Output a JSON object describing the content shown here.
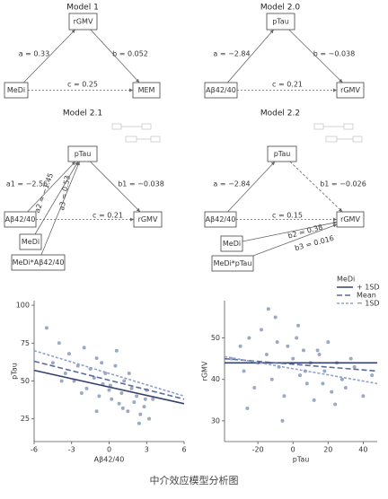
{
  "diagrams": [
    {
      "title": "Model 1",
      "nodes": [
        "rGMV",
        "MeDi",
        "MEM"
      ],
      "paths": [
        "a = 0.33",
        "b = 0.052",
        "c = 0.25"
      ]
    },
    {
      "title": "Model 2.0",
      "nodes": [
        "pTau",
        "Aβ42/40",
        "rGMV"
      ],
      "paths": [
        "a = −2.84",
        "b = −0.038",
        "c = 0.21"
      ]
    },
    {
      "title": "Model 2.1",
      "nodes": [
        "pTau",
        "Aβ42/40",
        "rGMV",
        "MeDi",
        "MeDi*Aβ42/40"
      ],
      "paths": [
        "a1 = −2.56",
        "a2 = −1.45",
        "a3 = 0.53",
        "b1 = −0.038",
        "c = 0.21"
      ]
    },
    {
      "title": "Model 2.2",
      "nodes": [
        "pTau",
        "Aβ42/40",
        "rGMV",
        "MeDi",
        "MeDi*pTau"
      ],
      "paths": [
        "a = −2.84",
        "b1 = −0.026",
        "c = 0.15",
        "b2 = 0.38",
        "b3 = 0.016"
      ]
    }
  ],
  "legend": {
    "title": "MeDi",
    "entries": [
      "+ 1SD",
      "Mean",
      "− 1SD"
    ]
  },
  "chart_data": [
    {
      "type": "scatter",
      "x_label": "Aβ42/40",
      "y_label": "pTau",
      "xlim": [
        -6,
        6
      ],
      "ylim": [
        10,
        103
      ],
      "xticks": [
        -6,
        -3,
        0,
        3,
        6
      ],
      "yticks": [
        25,
        50,
        75,
        100
      ],
      "points": {
        "color": "#5a6f9e",
        "x": [
          -4.5,
          -4,
          -3.5,
          -3.2,
          -2.8,
          -2.5,
          -2,
          -1.8,
          -1.5,
          -1.2,
          -1,
          -0.8,
          -0.5,
          -0.3,
          0,
          0.2,
          0.5,
          0.8,
          1,
          1.2,
          1.5,
          1.8,
          2,
          2.2,
          2.5,
          2.8,
          3,
          3.2,
          3.5,
          -5,
          -1,
          0.6,
          1.6,
          2.4,
          -2.2,
          0.1,
          -0.6,
          2.9,
          1.1,
          -3.8
        ],
        "values": [
          62,
          75,
          55,
          68,
          50,
          60,
          72,
          45,
          58,
          52,
          65,
          40,
          48,
          55,
          44,
          38,
          60,
          35,
          42,
          50,
          30,
          45,
          36,
          40,
          28,
          33,
          44,
          25,
          38,
          85,
          30,
          70,
          55,
          22,
          42,
          47,
          62,
          38,
          32,
          50
        ]
      },
      "series": [
        {
          "name": "+ 1SD",
          "color": "#34416e",
          "dash": "",
          "x": [
            -6,
            6
          ],
          "values": [
            57,
            35
          ]
        },
        {
          "name": "Mean",
          "color": "#5a6a9a",
          "dash": "6 3",
          "x": [
            -6,
            6
          ],
          "values": [
            63,
            38
          ]
        },
        {
          "name": "− 1SD",
          "color": "#8fa0c8",
          "dash": "3 2",
          "x": [
            -6,
            6
          ],
          "values": [
            70,
            40
          ]
        }
      ]
    },
    {
      "type": "scatter",
      "x_label": "pTau",
      "y_label": "rGMV",
      "xlim": [
        -39,
        48
      ],
      "ylim": [
        25,
        59
      ],
      "xticks": [
        -20,
        0,
        20,
        40
      ],
      "yticks": [
        30,
        40,
        50
      ],
      "points": {
        "color": "#5a6f9e",
        "x": [
          -35,
          -30,
          -28,
          -25,
          -22,
          -20,
          -18,
          -15,
          -12,
          -10,
          -8,
          -5,
          -3,
          0,
          2,
          4,
          6,
          8,
          10,
          12,
          15,
          18,
          20,
          22,
          25,
          28,
          30,
          35,
          40,
          45,
          -26,
          -14,
          -6,
          3,
          14,
          24,
          33,
          -9,
          7,
          17
        ],
        "values": [
          45,
          48,
          42,
          50,
          38,
          44,
          52,
          46,
          40,
          55,
          43,
          36,
          48,
          45,
          50,
          41,
          47,
          39,
          44,
          35,
          46,
          42,
          49,
          37,
          44,
          40,
          38,
          43,
          36,
          41,
          33,
          57,
          30,
          53,
          47,
          34,
          45,
          49,
          42,
          39
        ]
      },
      "series": [
        {
          "name": "+ 1SD",
          "color": "#34416e",
          "dash": "",
          "x": [
            -39,
            48
          ],
          "values": [
            44,
            44
          ]
        },
        {
          "name": "Mean",
          "color": "#5a6a9a",
          "dash": "6 3",
          "x": [
            -39,
            48
          ],
          "values": [
            45,
            42
          ]
        },
        {
          "name": "− 1SD",
          "color": "#8fa0c8",
          "dash": "3 2",
          "x": [
            -39,
            48
          ],
          "values": [
            45.5,
            39
          ]
        }
      ]
    }
  ],
  "caption": "中介效应模型分析图"
}
